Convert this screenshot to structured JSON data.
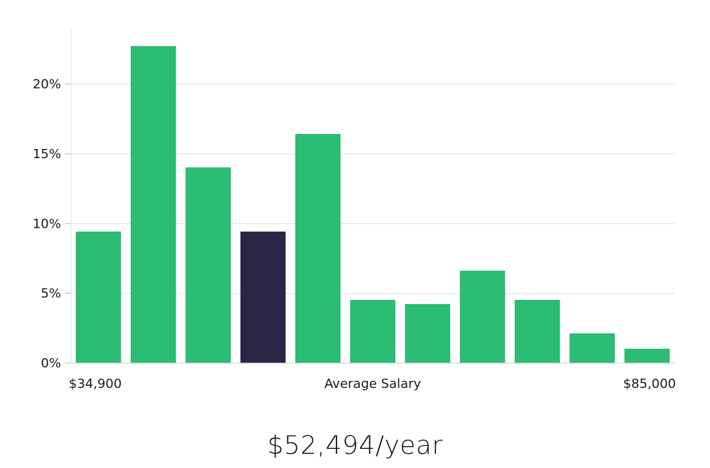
{
  "chart_data": {
    "type": "bar",
    "ylabel": "",
    "yticks": [
      "0%",
      "5%",
      "10%",
      "15%",
      "20%"
    ],
    "ytick_values": [
      0,
      5,
      10,
      15,
      20
    ],
    "ylim": [
      0,
      24
    ],
    "x_labels": {
      "min": "$34,900",
      "center": "Average Salary",
      "max": "$85,000"
    },
    "values": [
      9.4,
      22.7,
      14.0,
      9.4,
      16.4,
      4.5,
      4.2,
      6.6,
      4.5,
      2.1,
      1.0
    ],
    "highlight_index": 3,
    "grid": true,
    "colors": {
      "bar": "#2bbd74",
      "highlight": "#292646",
      "grid": "#dedede",
      "axis": "#cccccc"
    }
  },
  "salary": {
    "value": "$52,494/year"
  }
}
